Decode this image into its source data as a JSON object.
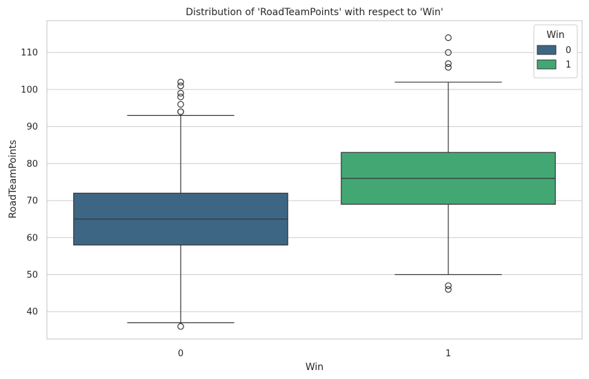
{
  "chart_data": {
    "type": "box",
    "title": "Distribution of 'RoadTeamPoints' with respect to 'Win'",
    "xlabel": "Win",
    "ylabel": "RoadTeamPoints",
    "categories": [
      "0",
      "1"
    ],
    "ylim": [
      32.6,
      118.6
    ],
    "yticks": [
      40,
      50,
      60,
      70,
      80,
      90,
      100,
      110
    ],
    "grid": "horizontal",
    "legend": {
      "title": "Win",
      "position": "top-right",
      "entries": [
        {
          "label": "0",
          "color": "#3d6684"
        },
        {
          "label": "1",
          "color": "#43a774"
        }
      ]
    },
    "boxes": [
      {
        "category": "0",
        "color": "#3d6684",
        "whisker_low": 37,
        "q1": 58,
        "median": 65,
        "q3": 72,
        "whisker_high": 93,
        "outliers": [
          36,
          94,
          94,
          96,
          98,
          99,
          101,
          102
        ]
      },
      {
        "category": "1",
        "color": "#43a774",
        "whisker_low": 50,
        "q1": 69,
        "median": 76,
        "q3": 83,
        "whisker_high": 102,
        "outliers": [
          46,
          47,
          106,
          107,
          110,
          114
        ]
      }
    ]
  }
}
